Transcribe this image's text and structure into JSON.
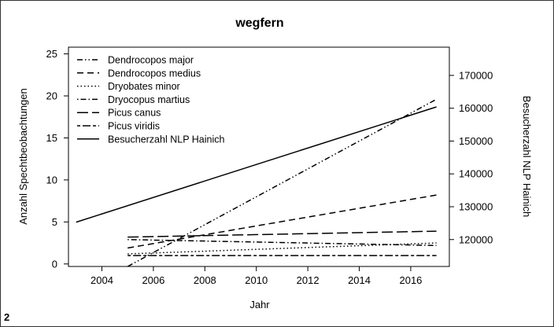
{
  "panel_label": "2",
  "chart_data": {
    "type": "line",
    "title": "wegfern",
    "xlabel": "Jahr",
    "ylabel": "Anzahl Spechtbeobachtungen",
    "y2label": "Besucherzahl NLP Hainich",
    "xlim": [
      2002.7,
      2017.5
    ],
    "ylim": [
      -0.3,
      25.8
    ],
    "y2lim": [
      111800,
      178600
    ],
    "xticks": [
      2004,
      2006,
      2008,
      2010,
      2012,
      2014,
      2016
    ],
    "yticks": [
      0,
      5,
      10,
      15,
      20,
      25
    ],
    "y2ticks": [
      120000,
      130000,
      140000,
      150000,
      160000,
      170000
    ],
    "y2tick_labels": [
      "120000",
      "130000",
      "140000",
      "150000",
      "160000",
      "170000"
    ],
    "grid": false,
    "legend_position": "top-left",
    "series": [
      {
        "name": "Dendrocopos major",
        "axis": "left",
        "dash": "dash-dot-dot",
        "x": [
          2005,
          2017
        ],
        "values": [
          -0.3,
          19.6
        ]
      },
      {
        "name": "Dendrocopos medius",
        "axis": "left",
        "dash": "dashed",
        "x": [
          2005,
          2017
        ],
        "values": [
          1.9,
          8.2
        ]
      },
      {
        "name": "Dryobates minor",
        "axis": "left",
        "dash": "dotted",
        "x": [
          2005,
          2017
        ],
        "values": [
          1.2,
          2.5
        ]
      },
      {
        "name": "Dryocopus martius",
        "axis": "left",
        "dash": "dot-dash",
        "x": [
          2005,
          2017
        ],
        "values": [
          2.9,
          2.2
        ]
      },
      {
        "name": "Picus canus",
        "axis": "left",
        "dash": "long-dash",
        "x": [
          2005,
          2017
        ],
        "values": [
          3.2,
          3.9
        ]
      },
      {
        "name": "Picus viridis",
        "axis": "left",
        "dash": "two-dash",
        "x": [
          2005,
          2017
        ],
        "values": [
          1.0,
          1.0
        ]
      },
      {
        "name": "Besucherzahl NLP Hainich",
        "axis": "right",
        "dash": "solid",
        "x": [
          2003,
          2017
        ],
        "values": [
          125300,
          160400
        ]
      }
    ]
  }
}
